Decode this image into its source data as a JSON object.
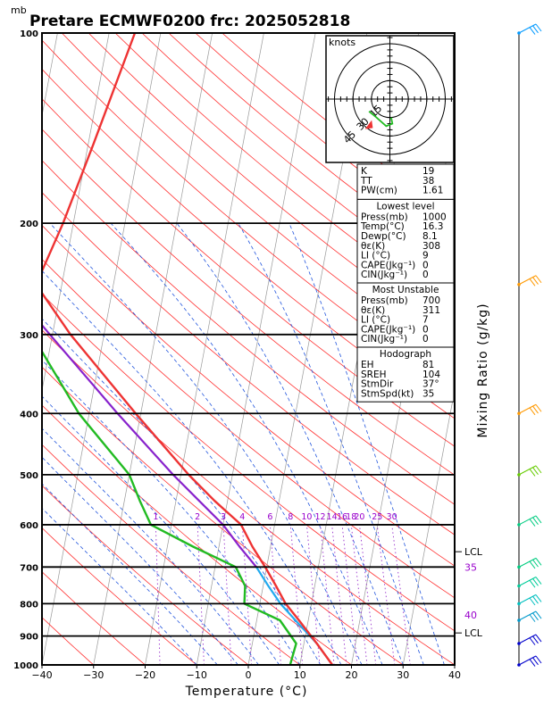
{
  "header": {
    "unit_mb": "mb",
    "title": "Pretare ECMWF0200 frc: 2025052818"
  },
  "chart_data": {
    "type": "skew-t",
    "xlabel": "Temperature (°C)",
    "ylabel": "Mixing Ratio (g/kg)",
    "xlim": [
      -40,
      40
    ],
    "ylim": [
      1000,
      100
    ],
    "x_ticks": [
      "−40",
      "−30",
      "−20",
      "−10",
      "0",
      "10",
      "20",
      "30",
      "40"
    ],
    "p_ticks": [
      "100",
      "200",
      "300",
      "400",
      "500",
      "600",
      "700",
      "800",
      "900",
      "1000"
    ],
    "p_values": [
      1000,
      925,
      850,
      800,
      750,
      700,
      650,
      600,
      550,
      500,
      400,
      300,
      250,
      200,
      150,
      100
    ],
    "temperature": [
      16.3,
      12.5,
      8.2,
      5.0,
      2.5,
      -0.3,
      -3.5,
      -6.5,
      -12.5,
      -18.5,
      -31.0,
      -46.5,
      -55.0,
      -52.0,
      -49.0,
      -45.0
    ],
    "dewpoint": [
      8.1,
      8.5,
      4.5,
      -3.0,
      -3.5,
      -6.0,
      -15.0,
      -24.0,
      -27.0,
      -30.0,
      -42.0,
      -54.0,
      -60.0,
      -67.0,
      -75.0,
      -82.0
    ],
    "parcel_sfc": [
      16.3,
      12.5,
      7.5,
      4.0,
      1.0,
      -2.0,
      null,
      null,
      null,
      null,
      null,
      null,
      null,
      null,
      null,
      null
    ],
    "parcel_mu": [
      null,
      null,
      null,
      null,
      null,
      -2.0,
      -6.0,
      -10.0,
      -15.5,
      -21.5,
      -34.5,
      -50.5,
      -60.5,
      -72.0,
      -85.0,
      -100.0
    ],
    "mixing_ratio_labels": [
      "1",
      "2",
      "3",
      "4",
      "6",
      "8",
      "10",
      "12",
      "14",
      "16",
      "18",
      "20",
      "25",
      "30"
    ],
    "right_labels": [
      {
        "text": "LCL",
        "p": 662
      },
      {
        "text": "35",
        "p": 700
      },
      {
        "text": "40",
        "p": 834
      },
      {
        "text": "LCL",
        "p": 890
      }
    ],
    "hodograph": {
      "unit": "knots",
      "ring_labels": [
        "15",
        "30",
        "45"
      ],
      "points": [
        [
          1,
          -15
        ],
        [
          2,
          -20
        ],
        [
          -3,
          -22
        ],
        [
          -12,
          -14
        ],
        [
          -17,
          -10
        ]
      ],
      "storm_motion": [
        -15,
        -21
      ]
    },
    "indices": {
      "general": [
        {
          "k": "K",
          "v": "19"
        },
        {
          "k": "TT",
          "v": "38"
        },
        {
          "k": "PW(cm)",
          "v": "1.61"
        }
      ],
      "lowest_level": {
        "title": "Lowest level",
        "rows": [
          {
            "k": "Press(mb)",
            "v": "1000"
          },
          {
            "k": "Temp(°C)",
            "v": "16.3"
          },
          {
            "k": "Dewp(°C)",
            "v": "8.1"
          },
          {
            "k": "θε(K)",
            "v": "308"
          },
          {
            "k": "LI (°C)",
            "v": "9"
          },
          {
            "k": "CAPE(Jkg⁻¹)",
            "v": "0"
          },
          {
            "k": "CIN(Jkg⁻¹)",
            "v": "0"
          }
        ]
      },
      "most_unstable": {
        "title": "Most Unstable",
        "rows": [
          {
            "k": "Press(mb)",
            "v": "700"
          },
          {
            "k": "θε(K)",
            "v": "311"
          },
          {
            "k": "LI (°C)",
            "v": "7"
          },
          {
            "k": "CAPE(Jkg⁻¹)",
            "v": "0"
          },
          {
            "k": "CIN(Jkg⁻¹)",
            "v": "0"
          }
        ]
      },
      "hodograph": {
        "title": "Hodograph",
        "rows": [
          {
            "k": "EH",
            "v": "81"
          },
          {
            "k": "SREH",
            "v": "104"
          },
          {
            "k": "StmDir",
            "v": "37°"
          },
          {
            "k": "StmSpd(kt)",
            "v": "35"
          }
        ]
      }
    },
    "wind_barbs": [
      {
        "p": 1000,
        "color": "#0000cc"
      },
      {
        "p": 925,
        "color": "#0000cc"
      },
      {
        "p": 850,
        "color": "#0099cc"
      },
      {
        "p": 800,
        "color": "#00bfbf"
      },
      {
        "p": 750,
        "color": "#00cc99"
      },
      {
        "p": 700,
        "color": "#00cc80"
      },
      {
        "p": 600,
        "color": "#00cc80"
      },
      {
        "p": 500,
        "color": "#66cc00"
      },
      {
        "p": 400,
        "color": "#ff9900"
      },
      {
        "p": 250,
        "color": "#ff9900"
      },
      {
        "p": 100,
        "color": "#0099ff"
      }
    ],
    "colors": {
      "temperature": "#ee3333",
      "dewpoint": "#22bb22",
      "parcel": "#22aaee",
      "mu_parcel": "#8822cc",
      "isotherms": "#999999",
      "dry_adiabats": "#ff3333",
      "moist_adiabats": "#2255dd",
      "mixing_ratio": "#9933cc"
    }
  }
}
